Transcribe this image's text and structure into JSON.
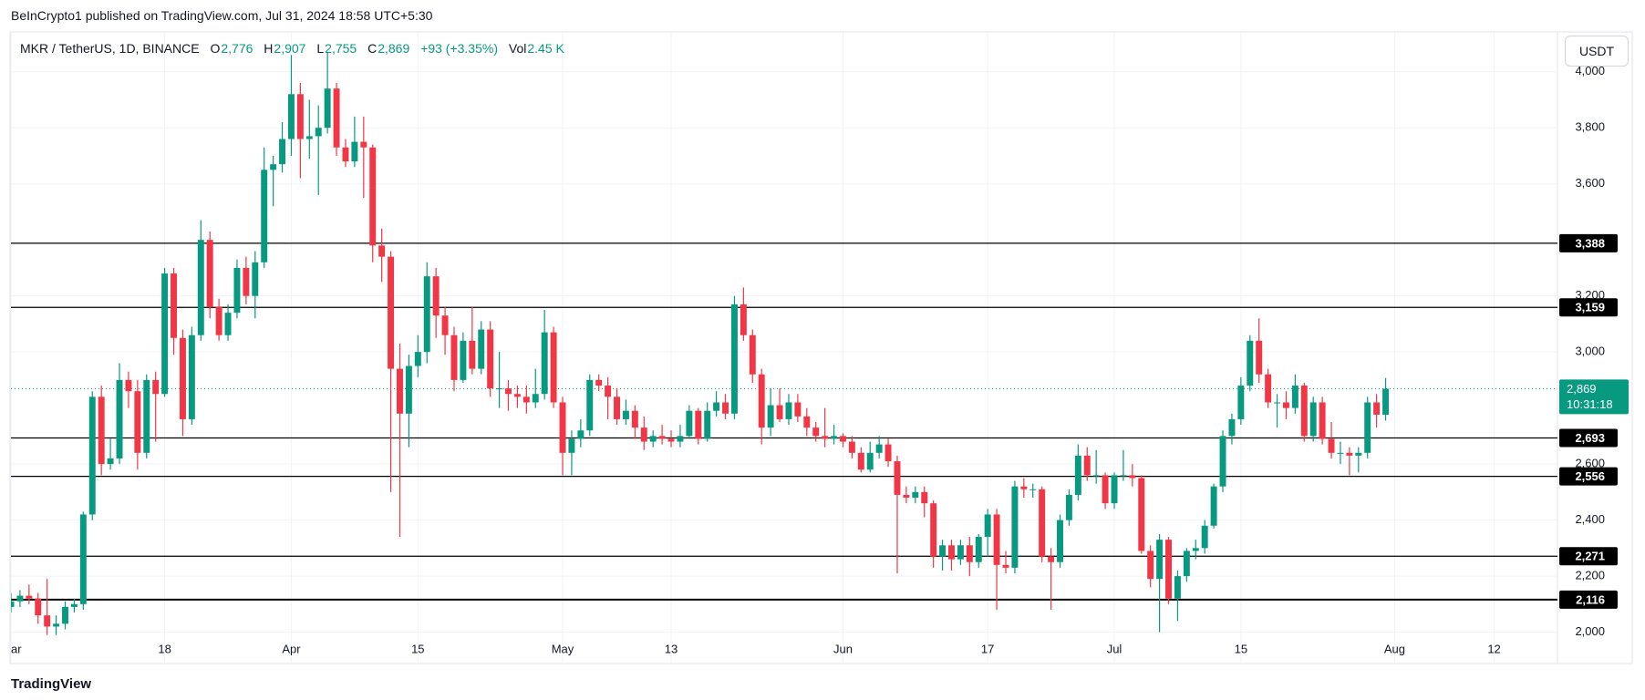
{
  "header": "BeInCrypto1 published on TradingView.com, Jul 31, 2024 18:58 UTC+5:30",
  "footer": "TradingView",
  "currency_button": "USDT",
  "legend": {
    "symbol": "MKR / TetherUS, 1D, BINANCE",
    "o_label": "O",
    "open": "2,776",
    "h_label": "H",
    "high": "2,907",
    "l_label": "L",
    "low": "2,755",
    "c_label": "C",
    "close": "2,869",
    "change": "+93 (+3.35%)",
    "vol_label": "Vol",
    "volume": "2.45 K"
  },
  "chart_data": {
    "type": "candlestick",
    "up_color": "#089981",
    "down_color": "#f23645",
    "grid": true,
    "xlim": [
      0,
      171
    ],
    "ylim": [
      1888,
      4139
    ],
    "xticks": [
      {
        "value": 0,
        "label": "ar"
      },
      {
        "value": 17,
        "label": "18"
      },
      {
        "value": 31,
        "label": "Apr"
      },
      {
        "value": 45,
        "label": "15"
      },
      {
        "value": 61,
        "label": "May"
      },
      {
        "value": 73,
        "label": "13"
      },
      {
        "value": 92,
        "label": "Jun"
      },
      {
        "value": 108,
        "label": "17"
      },
      {
        "value": 122,
        "label": "Jul"
      },
      {
        "value": 136,
        "label": "15"
      },
      {
        "value": 153,
        "label": "Aug"
      },
      {
        "value": 164,
        "label": "12"
      }
    ],
    "yticks": [
      {
        "value": 2000,
        "label": "2,000"
      },
      {
        "value": 2200,
        "label": "2,200"
      },
      {
        "value": 2400,
        "label": "2,400"
      },
      {
        "value": 2600,
        "label": "2,600"
      },
      {
        "value": 3000,
        "label": "3,000"
      },
      {
        "value": 3200,
        "label": "3,200"
      },
      {
        "value": 3600,
        "label": "3,600"
      },
      {
        "value": 3800,
        "label": "3,800"
      },
      {
        "value": 4000,
        "label": "4,000"
      }
    ],
    "levels": [
      {
        "value": 3388,
        "label": "3,388"
      },
      {
        "value": 3159,
        "label": "3,159"
      },
      {
        "value": 2693,
        "label": "2,693"
      },
      {
        "value": 2556,
        "label": "2,556"
      },
      {
        "value": 2271,
        "label": "2,271"
      },
      {
        "value": 2116,
        "label": "2,116"
      }
    ],
    "last_price": {
      "value": 2869,
      "label": "2,869"
    },
    "countdown": "10:31:18",
    "ohlc": [
      [
        2090,
        2140,
        2070,
        2110
      ],
      [
        2110,
        2150,
        2090,
        2130
      ],
      [
        2130,
        2170,
        2100,
        2120
      ],
      [
        2120,
        2140,
        2030,
        2060
      ],
      [
        2060,
        2190,
        1990,
        2020
      ],
      [
        2020,
        2060,
        1990,
        2030
      ],
      [
        2030,
        2110,
        2010,
        2090
      ],
      [
        2090,
        2120,
        2070,
        2100
      ],
      [
        2100,
        2430,
        2080,
        2420
      ],
      [
        2420,
        2860,
        2400,
        2840
      ],
      [
        2840,
        2880,
        2560,
        2600
      ],
      [
        2600,
        2690,
        2580,
        2620
      ],
      [
        2620,
        2960,
        2600,
        2900
      ],
      [
        2900,
        2930,
        2800,
        2860
      ],
      [
        2860,
        2900,
        2580,
        2640
      ],
      [
        2640,
        2920,
        2620,
        2900
      ],
      [
        2900,
        2930,
        2680,
        2850
      ],
      [
        2850,
        3300,
        2840,
        3280
      ],
      [
        3280,
        3300,
        2990,
        3050
      ],
      [
        3050,
        3080,
        2700,
        2760
      ],
      [
        2760,
        3090,
        2740,
        3060
      ],
      [
        3060,
        3470,
        3040,
        3400
      ],
      [
        3400,
        3430,
        3120,
        3160
      ],
      [
        3160,
        3190,
        3040,
        3060
      ],
      [
        3060,
        3170,
        3040,
        3140
      ],
      [
        3140,
        3330,
        3120,
        3300
      ],
      [
        3300,
        3340,
        3170,
        3200
      ],
      [
        3200,
        3360,
        3120,
        3320
      ],
      [
        3320,
        3730,
        3300,
        3650
      ],
      [
        3650,
        3700,
        3520,
        3670
      ],
      [
        3670,
        3820,
        3640,
        3760
      ],
      [
        3760,
        4060,
        3700,
        3920
      ],
      [
        3920,
        3960,
        3620,
        3760
      ],
      [
        3760,
        3900,
        3690,
        3770
      ],
      [
        3770,
        3880,
        3560,
        3800
      ],
      [
        3800,
        4070,
        3780,
        3940
      ],
      [
        3940,
        3960,
        3700,
        3730
      ],
      [
        3730,
        3760,
        3660,
        3680
      ],
      [
        3680,
        3840,
        3660,
        3750
      ],
      [
        3750,
        3840,
        3550,
        3730
      ],
      [
        3730,
        3740,
        3320,
        3380
      ],
      [
        3380,
        3440,
        3250,
        3340
      ],
      [
        3340,
        3360,
        2500,
        2940
      ],
      [
        2940,
        3030,
        2340,
        2780
      ],
      [
        2780,
        2990,
        2660,
        2950
      ],
      [
        2950,
        3060,
        2910,
        3000
      ],
      [
        3000,
        3320,
        2960,
        3270
      ],
      [
        3270,
        3300,
        3050,
        3130
      ],
      [
        3130,
        3160,
        2990,
        3060
      ],
      [
        3060,
        3090,
        2860,
        2900
      ],
      [
        2900,
        3070,
        2890,
        3040
      ],
      [
        3040,
        3160,
        2920,
        2940
      ],
      [
        2940,
        3110,
        2920,
        3080
      ],
      [
        3080,
        3110,
        2840,
        2870
      ],
      [
        2870,
        3000,
        2800,
        2870
      ],
      [
        2870,
        2900,
        2790,
        2850
      ],
      [
        2850,
        2880,
        2800,
        2840
      ],
      [
        2840,
        2880,
        2780,
        2820
      ],
      [
        2820,
        2940,
        2800,
        2850
      ],
      [
        2850,
        3150,
        2830,
        3070
      ],
      [
        3070,
        3090,
        2800,
        2820
      ],
      [
        2820,
        2840,
        2560,
        2640
      ],
      [
        2640,
        2720,
        2560,
        2690
      ],
      [
        2690,
        2760,
        2660,
        2720
      ],
      [
        2720,
        2920,
        2700,
        2900
      ],
      [
        2900,
        2920,
        2860,
        2880
      ],
      [
        2880,
        2910,
        2760,
        2840
      ],
      [
        2840,
        2870,
        2740,
        2760
      ],
      [
        2760,
        2830,
        2740,
        2790
      ],
      [
        2790,
        2810,
        2690,
        2730
      ],
      [
        2730,
        2770,
        2650,
        2680
      ],
      [
        2680,
        2720,
        2660,
        2700
      ],
      [
        2700,
        2740,
        2670,
        2690
      ],
      [
        2690,
        2720,
        2660,
        2680
      ],
      [
        2680,
        2740,
        2660,
        2700
      ],
      [
        2700,
        2810,
        2690,
        2790
      ],
      [
        2790,
        2800,
        2670,
        2690
      ],
      [
        2690,
        2820,
        2680,
        2790
      ],
      [
        2790,
        2860,
        2770,
        2820
      ],
      [
        2820,
        2850,
        2760,
        2780
      ],
      [
        2780,
        3200,
        2760,
        3170
      ],
      [
        3170,
        3230,
        3040,
        3060
      ],
      [
        3060,
        3080,
        2890,
        2920
      ],
      [
        2920,
        2940,
        2670,
        2730
      ],
      [
        2730,
        2870,
        2700,
        2810
      ],
      [
        2810,
        2870,
        2750,
        2760
      ],
      [
        2760,
        2850,
        2740,
        2820
      ],
      [
        2820,
        2850,
        2750,
        2770
      ],
      [
        2770,
        2800,
        2700,
        2730
      ],
      [
        2730,
        2750,
        2680,
        2700
      ],
      [
        2700,
        2800,
        2660,
        2690
      ],
      [
        2690,
        2740,
        2670,
        2700
      ],
      [
        2700,
        2710,
        2660,
        2680
      ],
      [
        2680,
        2700,
        2620,
        2640
      ],
      [
        2640,
        2660,
        2570,
        2580
      ],
      [
        2580,
        2680,
        2570,
        2640
      ],
      [
        2640,
        2700,
        2620,
        2670
      ],
      [
        2670,
        2690,
        2590,
        2610
      ],
      [
        2610,
        2630,
        2210,
        2490
      ],
      [
        2490,
        2520,
        2460,
        2480
      ],
      [
        2480,
        2520,
        2460,
        2500
      ],
      [
        2500,
        2520,
        2410,
        2460
      ],
      [
        2460,
        2470,
        2230,
        2270
      ],
      [
        2270,
        2330,
        2220,
        2310
      ],
      [
        2310,
        2330,
        2220,
        2260
      ],
      [
        2260,
        2330,
        2240,
        2310
      ],
      [
        2310,
        2340,
        2200,
        2250
      ],
      [
        2250,
        2350,
        2230,
        2340
      ],
      [
        2340,
        2440,
        2270,
        2420
      ],
      [
        2420,
        2440,
        2080,
        2240
      ],
      [
        2240,
        2290,
        2210,
        2230
      ],
      [
        2230,
        2540,
        2210,
        2520
      ],
      [
        2520,
        2550,
        2480,
        2510
      ],
      [
        2510,
        2530,
        2480,
        2510
      ],
      [
        2510,
        2520,
        2250,
        2270
      ],
      [
        2270,
        2300,
        2080,
        2250
      ],
      [
        2250,
        2420,
        2230,
        2400
      ],
      [
        2400,
        2510,
        2380,
        2490
      ],
      [
        2490,
        2670,
        2470,
        2630
      ],
      [
        2630,
        2660,
        2540,
        2560
      ],
      [
        2560,
        2650,
        2530,
        2560
      ],
      [
        2560,
        2570,
        2440,
        2460
      ],
      [
        2460,
        2570,
        2440,
        2560
      ],
      [
        2560,
        2650,
        2540,
        2560
      ],
      [
        2560,
        2600,
        2520,
        2550
      ],
      [
        2550,
        2560,
        2280,
        2290
      ],
      [
        2290,
        2310,
        2160,
        2190
      ],
      [
        2190,
        2350,
        2000,
        2330
      ],
      [
        2330,
        2340,
        2100,
        2120
      ],
      [
        2120,
        2220,
        2040,
        2200
      ],
      [
        2200,
        2300,
        2180,
        2290
      ],
      [
        2290,
        2330,
        2260,
        2300
      ],
      [
        2300,
        2400,
        2280,
        2380
      ],
      [
        2380,
        2530,
        2370,
        2520
      ],
      [
        2520,
        2720,
        2500,
        2700
      ],
      [
        2700,
        2780,
        2670,
        2760
      ],
      [
        2760,
        2910,
        2740,
        2880
      ],
      [
        2880,
        3060,
        2860,
        3040
      ],
      [
        3040,
        3120,
        2890,
        2920
      ],
      [
        2920,
        2940,
        2800,
        2820
      ],
      [
        2820,
        2850,
        2730,
        2820
      ],
      [
        2820,
        2860,
        2760,
        2800
      ],
      [
        2800,
        2920,
        2780,
        2880
      ],
      [
        2880,
        2890,
        2680,
        2700
      ],
      [
        2700,
        2840,
        2680,
        2820
      ],
      [
        2820,
        2840,
        2670,
        2690
      ],
      [
        2690,
        2750,
        2620,
        2640
      ],
      [
        2640,
        2680,
        2600,
        2640
      ],
      [
        2640,
        2660,
        2560,
        2630
      ],
      [
        2630,
        2660,
        2570,
        2640
      ],
      [
        2640,
        2840,
        2620,
        2820
      ],
      [
        2820,
        2850,
        2730,
        2776
      ],
      [
        2776,
        2907,
        2755,
        2869
      ]
    ]
  }
}
